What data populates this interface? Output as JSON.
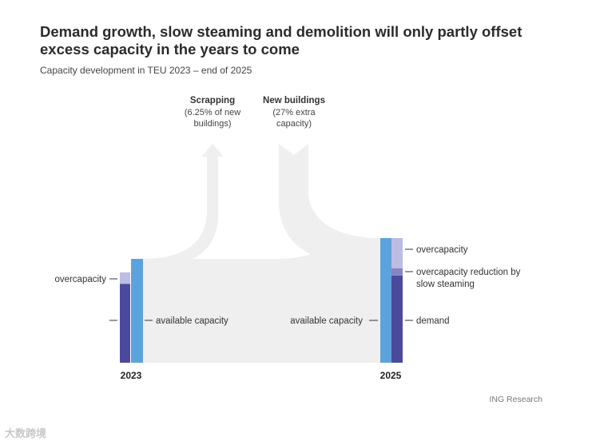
{
  "chart_data": {
    "type": "sankey",
    "title": "Demand growth, slow steaming and demolition will only partly offset excess capacity in the years to come",
    "subtitle": "Capacity development in TEU 2023 – end of 2025",
    "years": [
      "2023",
      "2025"
    ],
    "flows": {
      "scrapping": {
        "title": "Scrapping",
        "note": [
          "(6.25% of new",
          "buildings)"
        ]
      },
      "new_buildings": {
        "title": "New buildings",
        "note": [
          "(27% extra",
          "capacity)"
        ]
      }
    },
    "bars_2023": {
      "capacity": 1.0,
      "demand": 0.76,
      "overcapacity": 0.11,
      "labels": {
        "overcapacity": "overcapacity",
        "available": "available capacity"
      }
    },
    "bars_2025": {
      "capacity": 1.2,
      "demand": 0.84,
      "overcapacity_reduction": 0.07,
      "overcapacity": 0.29,
      "labels": {
        "overcapacity": "overcapacity",
        "reduction": [
          "overcapacity reduction by",
          "slow steaming"
        ],
        "available": "available capacity",
        "demand": "demand"
      }
    },
    "colors": {
      "capacity": "#5ba3dc",
      "demand": "#4b4a9c",
      "overcapacity": "#bdbde3",
      "reduction": "#8486c4",
      "flow": "#efefef"
    }
  },
  "source": "ING Research",
  "watermark": "大数跨境"
}
